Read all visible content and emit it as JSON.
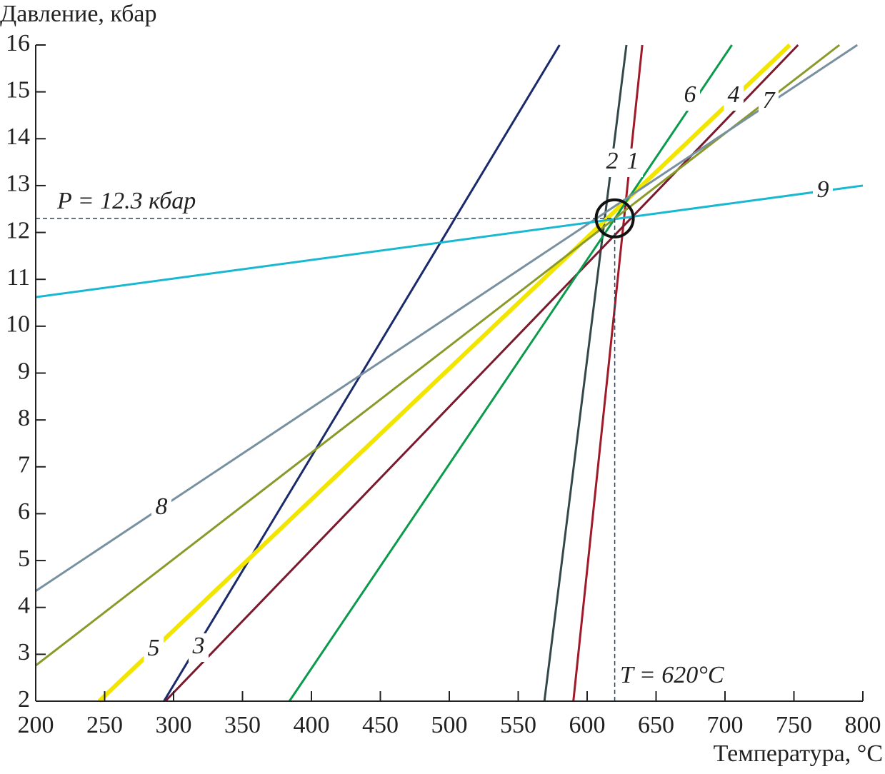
{
  "chart_data": {
    "type": "line",
    "y_label": "Давление, кбар",
    "x_label": "Температура, °C",
    "xlim": [
      200,
      800
    ],
    "ylim": [
      2,
      16
    ],
    "xticks": [
      200,
      250,
      300,
      350,
      400,
      450,
      500,
      550,
      600,
      650,
      700,
      750,
      800
    ],
    "yticks": [
      2,
      3,
      4,
      5,
      6,
      7,
      8,
      9,
      10,
      11,
      12,
      13,
      14,
      15,
      16
    ],
    "grid": false,
    "series": [
      {
        "name": "1",
        "color": "#a01a2a",
        "x": [
          590,
          640
        ],
        "values": [
          2,
          16
        ]
      },
      {
        "name": "2",
        "color": "#34484a",
        "x": [
          569,
          628.5
        ],
        "values": [
          2,
          16
        ]
      },
      {
        "name": "3",
        "color": "#1b2a6b",
        "x": [
          293,
          580
        ],
        "values": [
          2,
          16
        ]
      },
      {
        "name": "4",
        "color": "#7a1a2e",
        "x": [
          294,
          753
        ],
        "values": [
          2,
          16
        ]
      },
      {
        "name": "5",
        "color": "#f2e600",
        "x": [
          246,
          747
        ],
        "values": [
          2,
          16
        ]
      },
      {
        "name": "6",
        "color": "#0c9a4c",
        "x": [
          384,
          705
        ],
        "values": [
          2,
          16
        ]
      },
      {
        "name": "7",
        "color": "#8a9a2a",
        "x": [
          200,
          783
        ],
        "values": [
          2.76,
          16
        ]
      },
      {
        "name": "8",
        "color": "#7890a0",
        "x": [
          200,
          796
        ],
        "values": [
          4.35,
          16
        ]
      },
      {
        "name": "9",
        "color": "#18b8d0",
        "x": [
          200,
          800
        ],
        "values": [
          10.62,
          13
        ]
      }
    ],
    "hline": 12.3,
    "vline": 620,
    "annotations": [
      "P = 12.3 кбар",
      "T = 620°C"
    ]
  }
}
